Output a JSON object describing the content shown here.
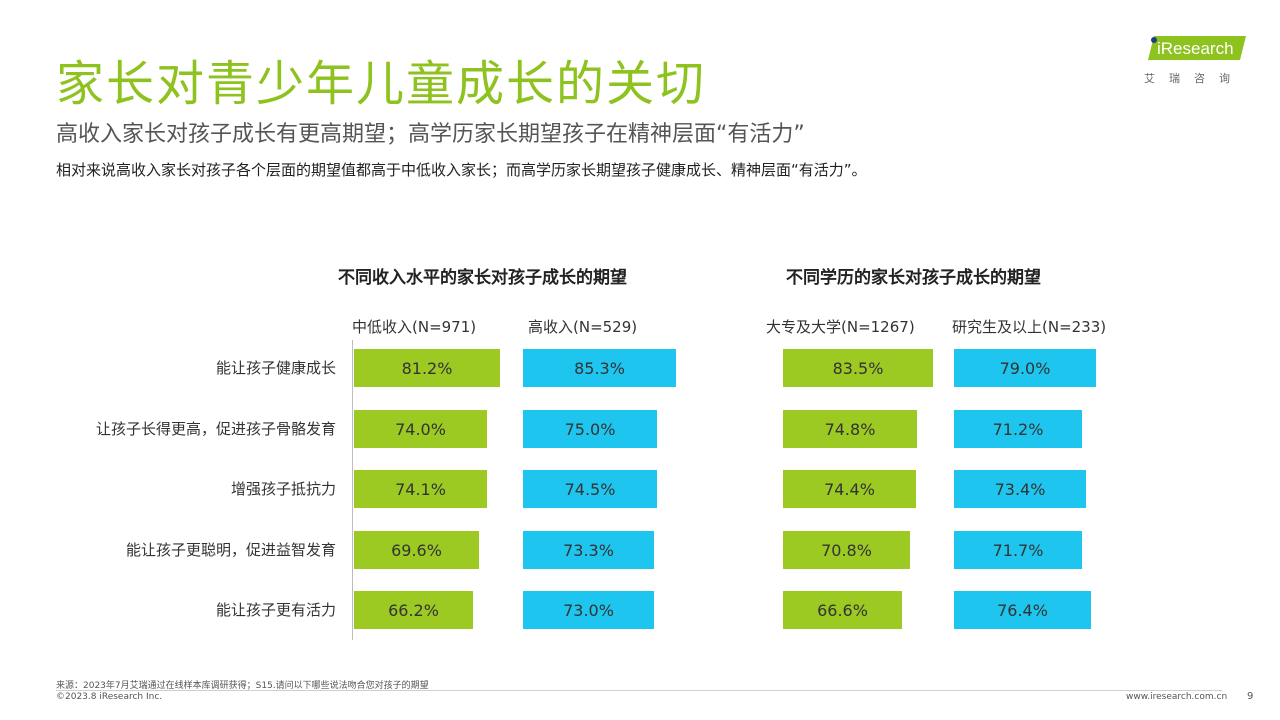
{
  "header": {
    "title": "家长对青少年儿童成长的关切",
    "subtitle": "高收入家长对孩子成长有更高期望；高学历家长期望孩子在精神层面“有活力”",
    "description": "相对来说高收入家长对孩子各个层面的期望值都高于中低收入家长；而高学历家长期望孩子健康成长、精神层面“有活力”。"
  },
  "logo": {
    "wordmark": "iResearch",
    "chinese": "艾瑞咨询"
  },
  "colors": {
    "accent": "#8DC21F",
    "green_bar": "#9CC922",
    "blue_bar": "#1EC5EE"
  },
  "chart_data": [
    {
      "type": "bar",
      "orientation": "horizontal",
      "title": "不同收入水平的家长对孩子成长的期望",
      "categories": [
        "能让孩子健康成长",
        "让孩子长得更高，促进孩子骨骼发育",
        "增强孩子抵抗力",
        "能让孩子更聪明，促进益智发育",
        "能让孩子更有活力"
      ],
      "series": [
        {
          "name": "中低收入(N=971)",
          "color": "#9CC922",
          "values": [
            81.2,
            74.0,
            74.1,
            69.6,
            66.2
          ],
          "labels": [
            "81.2%",
            "74.0%",
            "74.1%",
            "69.6%",
            "66.2%"
          ]
        },
        {
          "name": "高收入(N=529)",
          "color": "#1EC5EE",
          "values": [
            85.3,
            75.0,
            74.5,
            73.3,
            73.0
          ],
          "labels": [
            "85.3%",
            "75.0%",
            "74.5%",
            "73.3%",
            "73.0%"
          ]
        }
      ],
      "unit": "%"
    },
    {
      "type": "bar",
      "orientation": "horizontal",
      "title": "不同学历的家长对孩子成长的期望",
      "categories": [
        "能让孩子健康成长",
        "让孩子长得更高，促进孩子骨骼发育",
        "增强孩子抵抗力",
        "能让孩子更聪明，促进益智发育",
        "能让孩子更有活力"
      ],
      "series": [
        {
          "name": "大专及大学(N=1267)",
          "color": "#9CC922",
          "values": [
            83.5,
            74.8,
            74.4,
            70.8,
            66.6
          ],
          "labels": [
            "83.5%",
            "74.8%",
            "74.4%",
            "70.8%",
            "66.6%"
          ]
        },
        {
          "name": "研究生及以上(N=233)",
          "color": "#1EC5EE",
          "values": [
            79.0,
            71.2,
            73.4,
            71.7,
            76.4
          ],
          "labels": [
            "79.0%",
            "71.2%",
            "73.4%",
            "71.7%",
            "76.4%"
          ]
        }
      ],
      "unit": "%"
    }
  ],
  "footer": {
    "source": "来源：2023年7月艾瑞通过在线样本库调研获得；S15.请问以下哪些说法吻合您对孩子的期望",
    "copyright": "©2023.8 iResearch Inc.",
    "url": "www.iresearch.com.cn",
    "page": "9"
  }
}
